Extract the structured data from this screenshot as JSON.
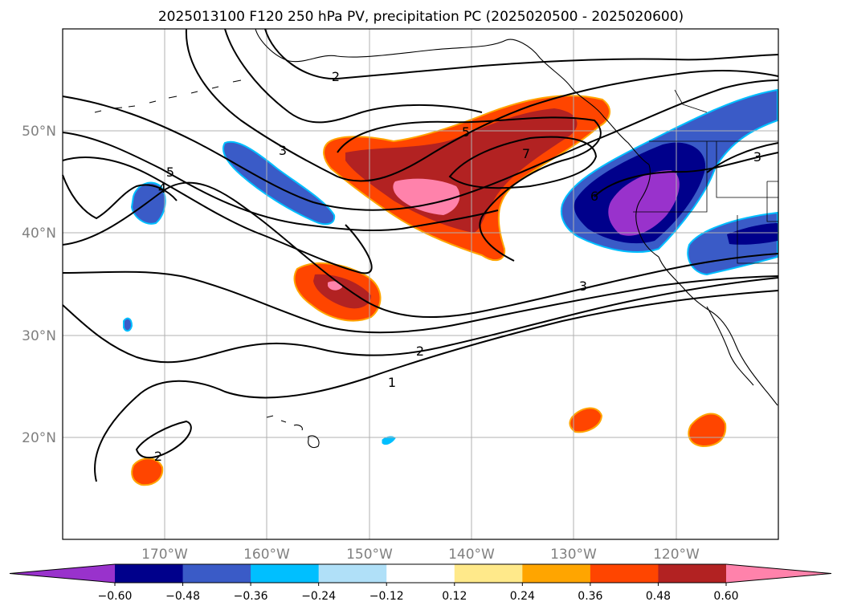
{
  "title": "2025013100 F120 250 hPa PV, precipitation PC (2025020500 - 2025020600)",
  "lat_labels": [
    "50°N",
    "40°N",
    "30°N",
    "20°N"
  ],
  "lon_labels": [
    "170°W",
    "160°W",
    "150°W",
    "140°W",
    "130°W",
    "120°W"
  ],
  "contour_labels": [
    "2",
    "3",
    "5",
    "4",
    "5",
    "7",
    "6",
    "3",
    "3",
    "2",
    "1",
    "2"
  ],
  "colorbar": {
    "ticks": [
      "−0.60",
      "−0.48",
      "−0.36",
      "−0.24",
      "−0.12",
      "0.12",
      "0.24",
      "0.36",
      "0.48",
      "0.60"
    ],
    "colors": [
      "#9932cc",
      "#00008b",
      "#3a5bc7",
      "#00bfff",
      "#b0e0f8",
      "#ffffff",
      "#ffe98a",
      "#ffa500",
      "#ff4500",
      "#b22222",
      "#ff82ab"
    ]
  }
}
